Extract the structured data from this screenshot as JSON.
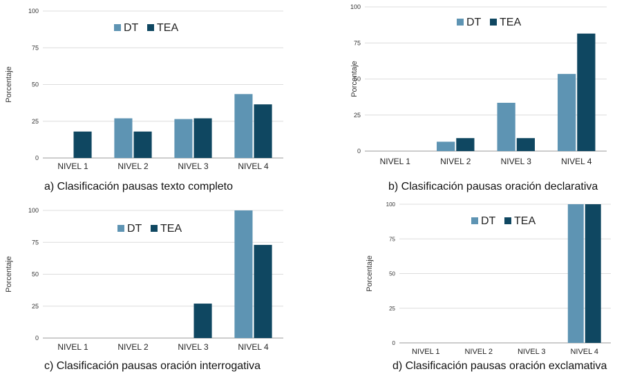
{
  "colors": {
    "DT": "#5e94b3",
    "TEA": "#0f4761",
    "grid": "#dcdcdc",
    "axis": "#9a9a9a"
  },
  "chart_data": [
    {
      "type": "bar",
      "panel": "a",
      "caption": "a) Clasificación pausas texto completo",
      "ylabel": "Porcentaje",
      "ylim": [
        0,
        100
      ],
      "yticks": [
        "0",
        "25",
        "50",
        "75",
        "100"
      ],
      "categories": [
        "NIVEL 1",
        "NIVEL 2",
        "NIVEL 3",
        "NIVEL 4"
      ],
      "series": [
        {
          "name": "DT",
          "values": [
            0,
            27,
            26.5,
            43.5
          ]
        },
        {
          "name": "TEA",
          "values": [
            18,
            18,
            27,
            36.5
          ]
        }
      ],
      "legend": "top-left",
      "grid": true
    },
    {
      "type": "bar",
      "panel": "b",
      "caption": "b) Clasificación pausas oración declarativa",
      "ylabel": "Porcentaje",
      "ylim": [
        0,
        100
      ],
      "yticks": [
        "0",
        "25",
        "50",
        "75",
        "100"
      ],
      "categories": [
        "NIVEL 1",
        "NIVEL 2",
        "NIVEL 3",
        "NIVEL 4"
      ],
      "series": [
        {
          "name": "DT",
          "values": [
            0,
            6.5,
            33.5,
            53.5
          ]
        },
        {
          "name": "TEA",
          "values": [
            0,
            9,
            9,
            81.5
          ]
        }
      ],
      "legend": "top-left",
      "grid": true
    },
    {
      "type": "bar",
      "panel": "c",
      "caption": "c) Clasificación pausas oración interrogativa",
      "ylabel": "Porcentaje",
      "ylim": [
        0,
        100
      ],
      "yticks": [
        "0",
        "25",
        "50",
        "75",
        "100"
      ],
      "categories": [
        "NIVEL 1",
        "NIVEL 2",
        "NIVEL 3",
        "NIVEL 4"
      ],
      "series": [
        {
          "name": "DT",
          "values": [
            0,
            0,
            0,
            100
          ]
        },
        {
          "name": "TEA",
          "values": [
            0,
            0,
            27,
            73
          ]
        }
      ],
      "legend": "top-left",
      "grid": true
    },
    {
      "type": "bar",
      "panel": "d",
      "caption": "d) Clasificación pausas oración exclamativa",
      "ylabel": "Porcentaje",
      "ylim": [
        0,
        100
      ],
      "yticks": [
        "0",
        "25",
        "50",
        "75",
        "100"
      ],
      "categories": [
        "NIVEL 1",
        "NIVEL 2",
        "NIVEL 3",
        "NIVEL 4"
      ],
      "series": [
        {
          "name": "DT",
          "values": [
            0,
            0,
            0,
            100
          ]
        },
        {
          "name": "TEA",
          "values": [
            0,
            0,
            0,
            100
          ]
        }
      ],
      "legend": "top-left",
      "grid": true
    }
  ]
}
